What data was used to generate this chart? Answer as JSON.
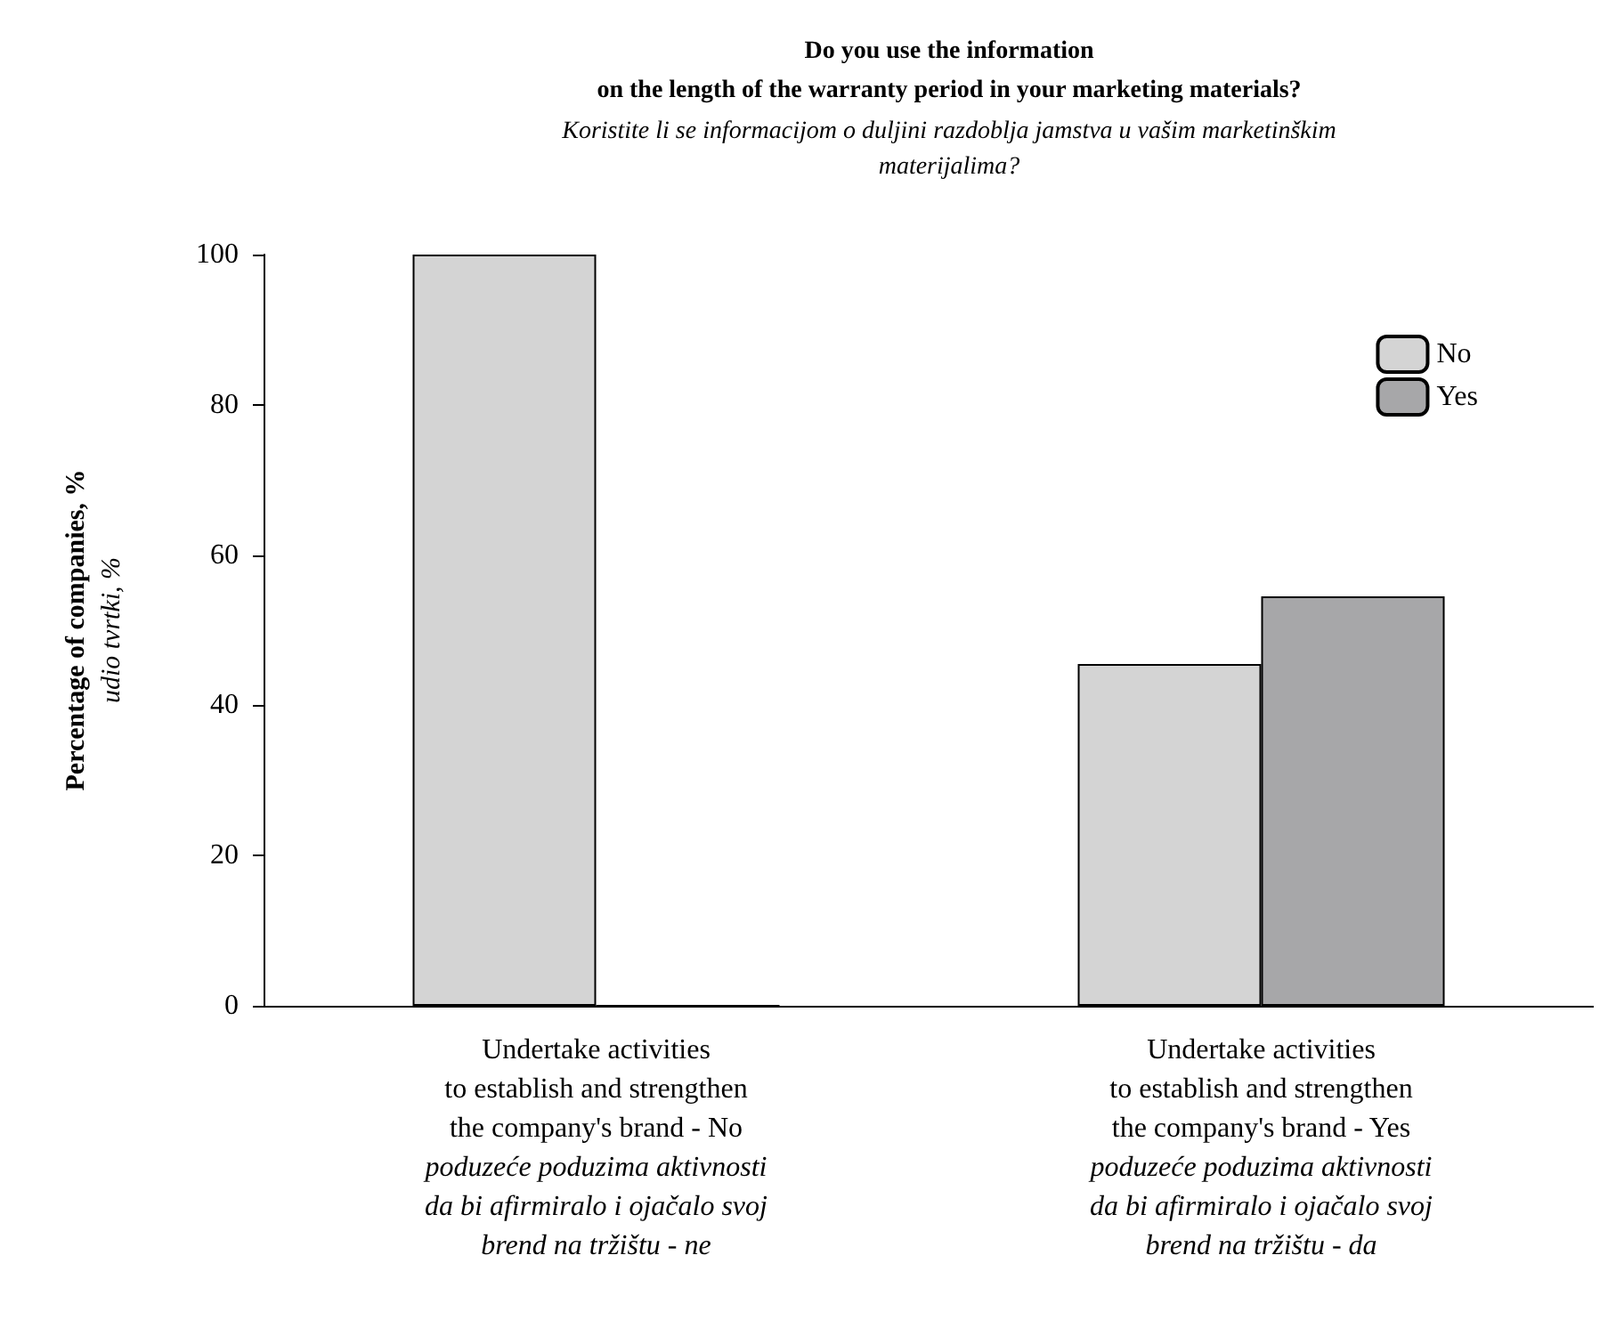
{
  "chart_data": {
    "type": "bar",
    "title": "Do you use the information\non the length of the warranty period in your marketing materials?",
    "subtitle": "Koristite li se informacijom o duljini razdoblja jamstva u vašim marketinškim\nmaterijalima?",
    "ylabel": "Percentage of companies, %\nudio tvrtki, %",
    "categories": [
      "Undertake activities\nto establish and strengthen\nthe company's brand - No\npoduzeće poduzima aktivnosti\nda bi afirmiralo i ojačalo svoj\nbrend na tržištu - ne",
      "Undertake activities\nto establish and strengthen\nthe company's brand - Yes\npoduzeće poduzima aktivnosti\nda bi afirmiralo i ojačalo svoj\nbrend na tržištu - da"
    ],
    "series": [
      {
        "name": "No",
        "color": "#d4d4d4",
        "values": [
          100,
          45.5
        ]
      },
      {
        "name": "Yes",
        "color": "#a7a7a9",
        "values": [
          0,
          54.5
        ]
      }
    ],
    "ylim": [
      0,
      100
    ],
    "yticks": [
      0,
      20,
      40,
      60,
      80,
      100
    ],
    "grid": false,
    "legend": "top right"
  }
}
